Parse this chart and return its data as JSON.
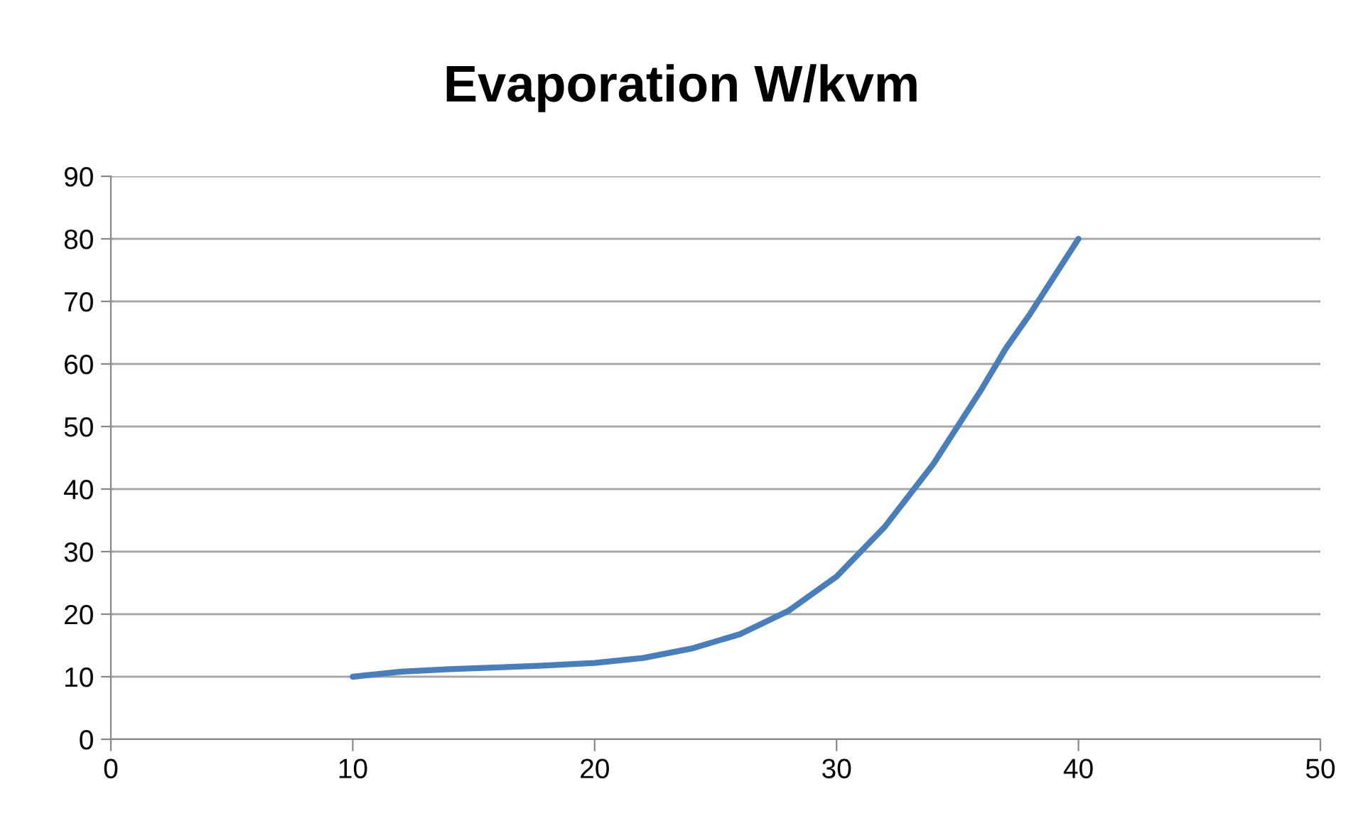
{
  "chart_data": {
    "type": "line",
    "title": "Evaporation W/kvm",
    "series": [
      {
        "color": "#4a7ebb",
        "x": [
          10,
          12,
          14,
          16,
          18,
          20,
          22,
          24,
          26,
          28,
          30,
          32,
          34,
          35,
          36,
          37,
          38,
          39,
          40
        ],
        "values": [
          10,
          10.8,
          11.2,
          11.5,
          11.8,
          12.2,
          13,
          14.5,
          16.8,
          20.5,
          26,
          34,
          44,
          50,
          56,
          62.5,
          68,
          74,
          80
        ]
      }
    ],
    "xlim": [
      0,
      50
    ],
    "xticks": [
      0,
      10,
      20,
      30,
      40,
      50
    ],
    "ylim": [
      0,
      90
    ],
    "yticks": [
      0,
      10,
      20,
      30,
      40,
      50,
      60,
      70,
      80,
      90
    ],
    "grid": "y",
    "marker": "none",
    "line_style": "solid",
    "legend": false
  }
}
